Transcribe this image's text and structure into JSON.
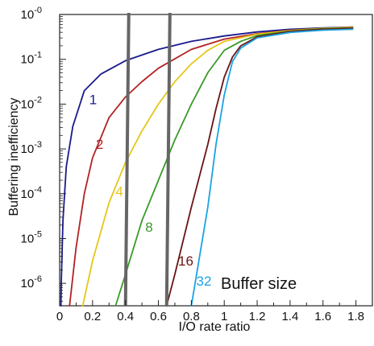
{
  "chart_data": {
    "type": "line",
    "title": "",
    "xlabel": "I/O rate ratio",
    "ylabel": "Buffering inefficiency",
    "xlim": [
      0,
      1.9
    ],
    "ylim_log10": [
      -6.5,
      0
    ],
    "y_scale": "log",
    "grid": false,
    "x_ticks": [
      "0",
      "0.2",
      "0.4",
      "0.6",
      "0.8",
      "1",
      "1.2",
      "1.4",
      "1.6",
      "1.8"
    ],
    "y_ticks": [
      {
        "base": "10",
        "exp": "-0",
        "value": 0
      },
      {
        "base": "10",
        "exp": "-1",
        "value": -1
      },
      {
        "base": "10",
        "exp": "-2",
        "value": -2
      },
      {
        "base": "10",
        "exp": "-3",
        "value": -3
      },
      {
        "base": "10",
        "exp": "-4",
        "value": -4
      },
      {
        "base": "10",
        "exp": "-5",
        "value": -5
      },
      {
        "base": "10",
        "exp": "-6",
        "value": -6
      }
    ],
    "annotation": "Buffer size",
    "vertical_lines": [
      {
        "x_bottom": 0.4,
        "x_top": 0.42,
        "color": "#666666"
      },
      {
        "x_bottom": 0.65,
        "x_top": 0.67,
        "color": "#666666"
      }
    ],
    "series": [
      {
        "label": "1",
        "color": "#1a1a8c",
        "points": [
          [
            0.008,
            -6.5
          ],
          [
            0.01,
            -6.0
          ],
          [
            0.02,
            -4.6
          ],
          [
            0.04,
            -3.4
          ],
          [
            0.08,
            -2.5
          ],
          [
            0.15,
            -1.7
          ],
          [
            0.25,
            -1.33
          ],
          [
            0.4,
            -1.03
          ],
          [
            0.6,
            -0.78
          ],
          [
            0.8,
            -0.6
          ],
          [
            1.0,
            -0.48
          ],
          [
            1.2,
            -0.39
          ],
          [
            1.4,
            -0.33
          ],
          [
            1.6,
            -0.3
          ],
          [
            1.78,
            -0.28
          ]
        ]
      },
      {
        "label": "2",
        "color": "#b22222",
        "points": [
          [
            0.06,
            -6.5
          ],
          [
            0.1,
            -5.2
          ],
          [
            0.15,
            -4.0
          ],
          [
            0.2,
            -3.2
          ],
          [
            0.3,
            -2.3
          ],
          [
            0.4,
            -1.84
          ],
          [
            0.5,
            -1.5
          ],
          [
            0.6,
            -1.2
          ],
          [
            0.8,
            -0.78
          ],
          [
            1.0,
            -0.55
          ],
          [
            1.2,
            -0.43
          ],
          [
            1.4,
            -0.35
          ],
          [
            1.6,
            -0.31
          ],
          [
            1.78,
            -0.28
          ]
        ]
      },
      {
        "label": "4",
        "color": "#e6c619",
        "points": [
          [
            0.14,
            -6.5
          ],
          [
            0.2,
            -5.5
          ],
          [
            0.3,
            -4.2
          ],
          [
            0.4,
            -3.3
          ],
          [
            0.5,
            -2.6
          ],
          [
            0.6,
            -2.0
          ],
          [
            0.7,
            -1.5
          ],
          [
            0.8,
            -1.1
          ],
          [
            0.9,
            -0.8
          ],
          [
            1.0,
            -0.6
          ],
          [
            1.2,
            -0.44
          ],
          [
            1.4,
            -0.36
          ],
          [
            1.6,
            -0.31
          ],
          [
            1.78,
            -0.29
          ]
        ]
      },
      {
        "label": "8",
        "color": "#3a9a2a",
        "points": [
          [
            0.34,
            -6.5
          ],
          [
            0.4,
            -5.8
          ],
          [
            0.5,
            -4.6
          ],
          [
            0.6,
            -3.7
          ],
          [
            0.7,
            -2.8
          ],
          [
            0.8,
            -2.0
          ],
          [
            0.9,
            -1.3
          ],
          [
            1.0,
            -0.8
          ],
          [
            1.1,
            -0.6
          ],
          [
            1.2,
            -0.47
          ],
          [
            1.4,
            -0.37
          ],
          [
            1.6,
            -0.32
          ],
          [
            1.78,
            -0.3
          ]
        ]
      },
      {
        "label": "16",
        "color": "#6b1414",
        "points": [
          [
            0.65,
            -6.5
          ],
          [
            0.7,
            -5.8
          ],
          [
            0.8,
            -4.3
          ],
          [
            0.9,
            -2.9
          ],
          [
            0.95,
            -2.1
          ],
          [
            1.0,
            -1.4
          ],
          [
            1.05,
            -0.95
          ],
          [
            1.1,
            -0.7
          ],
          [
            1.2,
            -0.5
          ],
          [
            1.4,
            -0.38
          ],
          [
            1.6,
            -0.33
          ],
          [
            1.78,
            -0.31
          ]
        ]
      },
      {
        "label": "32",
        "color": "#1aa3e0",
        "points": [
          [
            0.8,
            -6.5
          ],
          [
            0.85,
            -5.4
          ],
          [
            0.9,
            -4.3
          ],
          [
            0.95,
            -2.9
          ],
          [
            1.0,
            -1.8
          ],
          [
            1.05,
            -1.05
          ],
          [
            1.1,
            -0.75
          ],
          [
            1.2,
            -0.52
          ],
          [
            1.4,
            -0.4
          ],
          [
            1.6,
            -0.35
          ],
          [
            1.78,
            -0.33
          ]
        ]
      }
    ]
  }
}
